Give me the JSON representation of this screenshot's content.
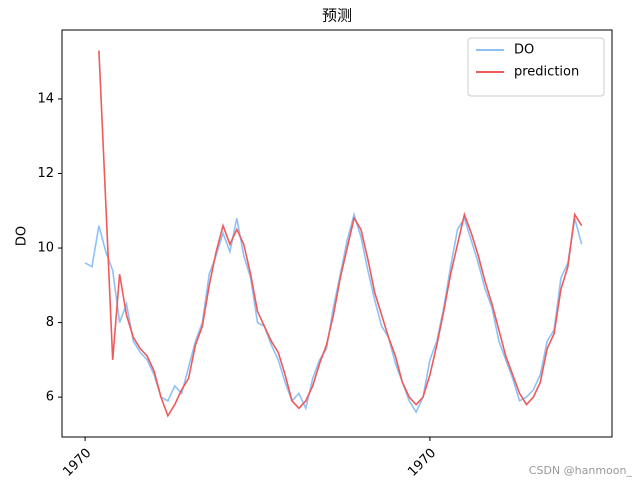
{
  "chart_data": {
    "type": "line",
    "title": "预测",
    "ylabel": "DO",
    "x": [
      0,
      2,
      4,
      6,
      8,
      10,
      12,
      14,
      16,
      18,
      20,
      22,
      24,
      26,
      28,
      30,
      32,
      34,
      36,
      38,
      40,
      42,
      44,
      46,
      48,
      50,
      52,
      54,
      56,
      58,
      60,
      62,
      64,
      66,
      68,
      70,
      72,
      74,
      76,
      78,
      80,
      82,
      84,
      86,
      88,
      90,
      92,
      94,
      96,
      98,
      100,
      102,
      104,
      106,
      108,
      110,
      112,
      114,
      116,
      118,
      120,
      122,
      124,
      126,
      128,
      130,
      132,
      134,
      136,
      138,
      140,
      142,
      144
    ],
    "series": [
      {
        "name": "DO",
        "color": "#8fc1f5",
        "values": [
          9.6,
          9.5,
          10.6,
          9.9,
          9.4,
          8.0,
          8.5,
          7.5,
          7.2,
          7.0,
          6.6,
          6.0,
          5.9,
          6.3,
          6.1,
          6.8,
          7.5,
          8.0,
          9.3,
          9.8,
          10.4,
          9.9,
          10.8,
          9.8,
          9.2,
          8.0,
          7.9,
          7.4,
          7.0,
          6.4,
          5.9,
          6.1,
          5.7,
          6.5,
          7.0,
          7.3,
          8.4,
          9.3,
          10.2,
          10.9,
          10.3,
          9.4,
          8.6,
          7.9,
          7.6,
          6.9,
          6.4,
          5.9,
          5.6,
          6.0,
          7.0,
          7.5,
          8.4,
          9.5,
          10.5,
          10.8,
          10.2,
          9.6,
          8.9,
          8.4,
          7.5,
          7.0,
          6.5,
          5.9,
          6.0,
          6.2,
          6.6,
          7.5,
          7.8,
          9.2,
          9.6,
          10.8,
          10.1
        ]
      },
      {
        "name": "prediction",
        "color": "#f05a5a",
        "values": [
          null,
          null,
          15.3,
          11.2,
          7.0,
          9.3,
          8.2,
          7.6,
          7.3,
          7.1,
          6.7,
          6.0,
          5.5,
          5.8,
          6.2,
          6.5,
          7.4,
          7.9,
          9.0,
          9.9,
          10.6,
          10.1,
          10.5,
          10.1,
          9.3,
          8.3,
          7.9,
          7.5,
          7.2,
          6.6,
          5.9,
          5.7,
          5.9,
          6.3,
          6.9,
          7.4,
          8.2,
          9.2,
          10.0,
          10.8,
          10.5,
          9.7,
          8.8,
          8.2,
          7.6,
          7.1,
          6.4,
          6.0,
          5.8,
          6.0,
          6.6,
          7.4,
          8.3,
          9.3,
          10.1,
          10.9,
          10.4,
          9.8,
          9.1,
          8.5,
          7.8,
          7.1,
          6.6,
          6.1,
          5.8,
          6.0,
          6.4,
          7.3,
          7.7,
          8.9,
          9.5,
          10.9,
          10.6
        ]
      }
    ],
    "xlim": [
      -6.7,
      152.8
    ],
    "xticks": [
      {
        "value": 0,
        "label": "1970"
      },
      {
        "value": 100,
        "label": "1970"
      }
    ],
    "ylim": [
      4.93,
      15.85
    ],
    "yticks": [
      6,
      8,
      10,
      12,
      14
    ],
    "legend": "upper right",
    "watermark": "CSDN @hanmoon_"
  }
}
